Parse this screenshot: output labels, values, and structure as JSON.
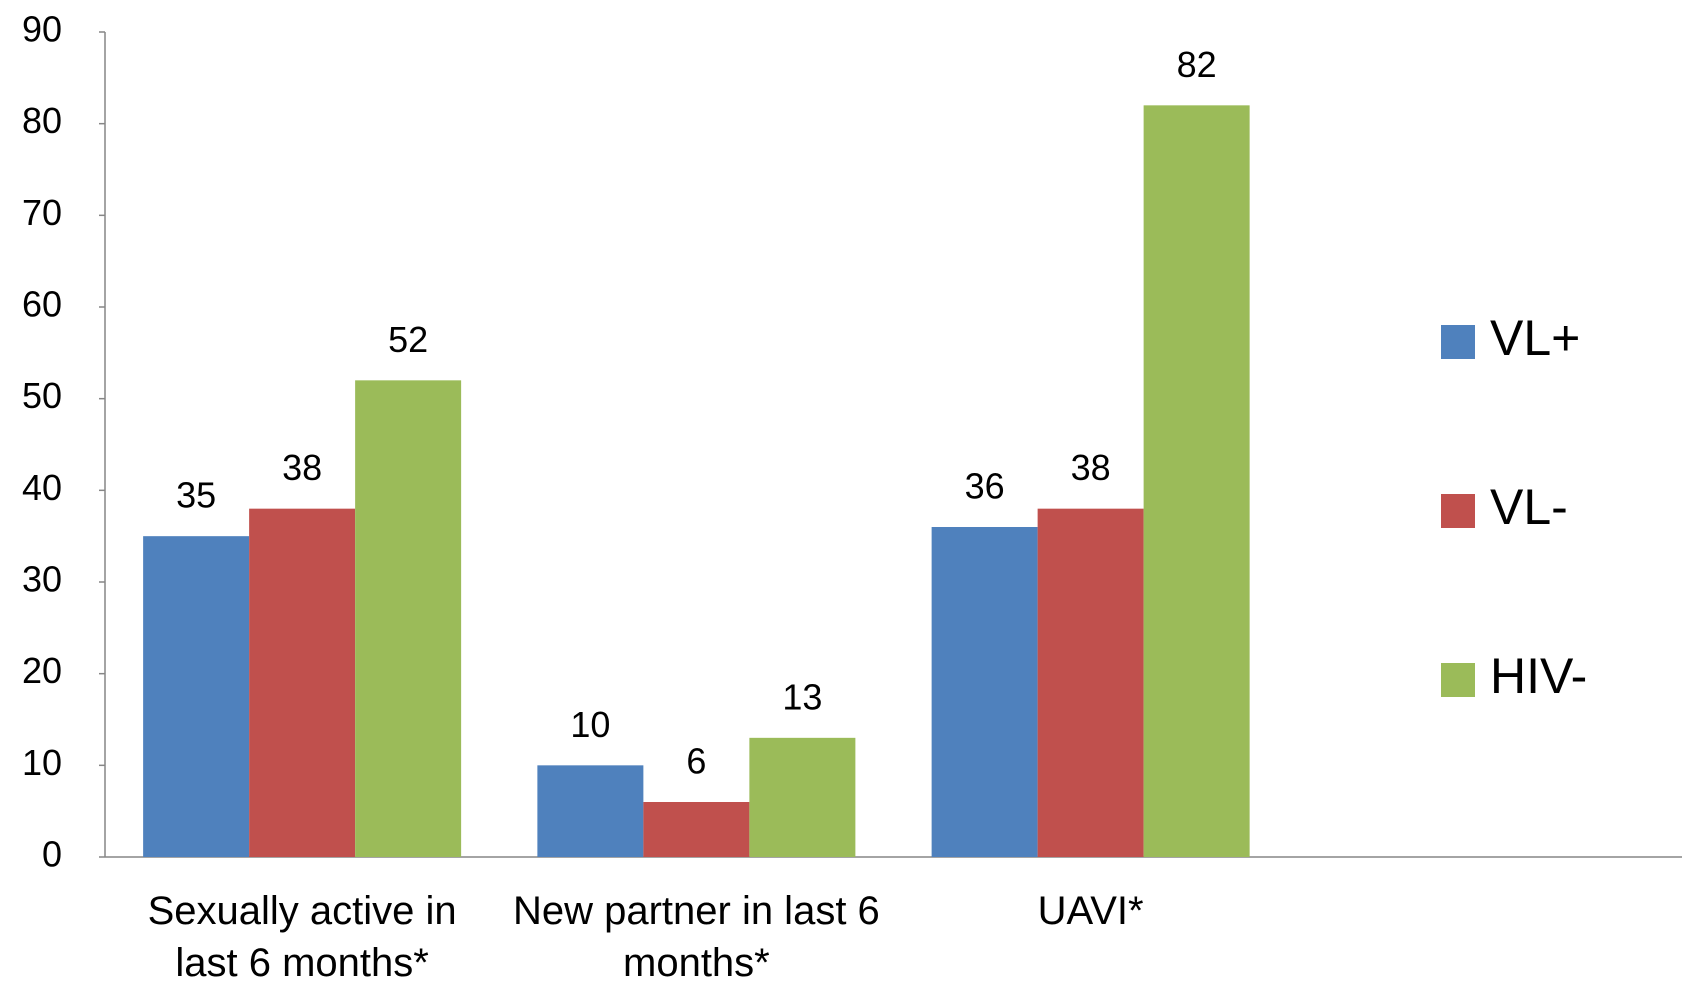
{
  "chart_data": {
    "type": "bar",
    "categories": [
      "Sexually active in last 6 months*",
      "New partner in last 6 months*",
      "UAVI*",
      null
    ],
    "series": [
      {
        "name": "VL+",
        "color": "#4f81bd",
        "values": [
          35,
          10,
          36,
          null
        ]
      },
      {
        "name": "VL-",
        "color": "#c0504d",
        "values": [
          38,
          6,
          38,
          null
        ]
      },
      {
        "name": "HIV-",
        "color": "#9bbb59",
        "values": [
          52,
          13,
          82,
          null
        ]
      }
    ],
    "ylim": [
      0,
      90
    ],
    "yticks": [
      0,
      10,
      20,
      30,
      40,
      50,
      60,
      70,
      80,
      90
    ],
    "grid": false,
    "data_labels": true,
    "legend": "right"
  }
}
